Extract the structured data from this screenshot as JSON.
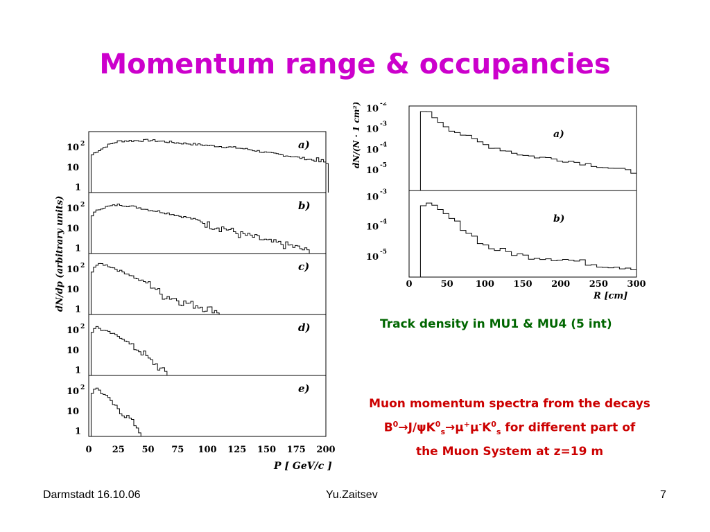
{
  "slide": {
    "title": "Momentum range & occupancies",
    "caption_track": "Track density in MU1 & MU4 (5 int)",
    "caption_muon": {
      "line1": "Muon momentum spectra from the decays",
      "line3": "the Muon System at z=19 m",
      "part_B": "B",
      "sup_0a": "0",
      "arrow1": "→J/ψK",
      "sup_0b": "0",
      "sub_s1": "s",
      "arrow2": "→μ",
      "sup_plus": "+",
      "mu_minus": "μ",
      "sup_minus": "-",
      "K": "K",
      "sup_0c": "0",
      "sub_s2": "s",
      "tail": " for different part of"
    },
    "footer": {
      "left": "Darmstadt 16.10.06",
      "center": "Yu.Zaitsev",
      "right": "7"
    },
    "colors": {
      "title": "#cc00cc",
      "caption_track": "#006600",
      "caption_muon": "#cc0000"
    }
  },
  "left_figure": {
    "ylabel": "dN/dp (arbitrary units)",
    "xlabel": "P [ GeV/c ]",
    "xticks": [
      "0",
      "25",
      "50",
      "75",
      "100",
      "125",
      "150",
      "175",
      "200"
    ],
    "ytick_top": "10",
    "ytick_top_exp": "2",
    "ytick_mid": "10",
    "ytick_low": "1",
    "panels": [
      "a)",
      "b)",
      "c)",
      "d)",
      "e)"
    ]
  },
  "right_figure": {
    "ylabel": "dN/(N · 1 cm²)",
    "xlabel": "R [cm]",
    "xticks": [
      "0",
      "50",
      "100",
      "150",
      "200",
      "250",
      "300"
    ],
    "panel_a": {
      "label": "a)",
      "ticks": [
        "-2",
        "-3",
        "-4",
        "-5"
      ]
    },
    "panel_b": {
      "label": "b)",
      "ticks": [
        "-3",
        "-4",
        "-5"
      ]
    },
    "tick_base": "10"
  },
  "chart_data": [
    {
      "type": "histogram",
      "xlabel": "P [ GeV/c ]",
      "ylabel": "dN/dp (arbitrary units)",
      "xlim": [
        0,
        200
      ],
      "yscale": "log",
      "series": [
        {
          "name": "a)",
          "x": [
            0,
            10,
            25,
            50,
            75,
            100,
            125,
            150,
            175,
            200
          ],
          "y": [
            30,
            80,
            200,
            220,
            160,
            120,
            90,
            50,
            30,
            15
          ]
        },
        {
          "name": "b)",
          "x": [
            0,
            10,
            25,
            50,
            75,
            100,
            125,
            150,
            175,
            200
          ],
          "y": [
            30,
            100,
            150,
            80,
            40,
            15,
            5,
            2,
            1,
            0
          ]
        },
        {
          "name": "c)",
          "x": [
            0,
            5,
            10,
            25,
            40,
            60,
            80,
            100,
            125
          ],
          "y": [
            30,
            150,
            180,
            80,
            30,
            5,
            2,
            1,
            0
          ]
        },
        {
          "name": "d)",
          "x": [
            0,
            5,
            10,
            20,
            35,
            50,
            60,
            75
          ],
          "y": [
            30,
            150,
            100,
            60,
            15,
            3,
            1,
            0
          ]
        },
        {
          "name": "e)",
          "x": [
            0,
            5,
            10,
            20,
            30,
            40,
            50
          ],
          "y": [
            30,
            150,
            80,
            20,
            5,
            1,
            0
          ]
        }
      ]
    },
    {
      "type": "histogram",
      "xlabel": "R [cm]",
      "ylabel": "dN/(N · 1 cm²)",
      "xlim": [
        0,
        300
      ],
      "yscale": "log",
      "series": [
        {
          "name": "a)",
          "x": [
            15,
            25,
            50,
            100,
            150,
            200,
            250,
            300
          ],
          "y": [
            0.008,
            0.005,
            0.001,
            0.00015,
            5e-05,
            3e-05,
            1.5e-05,
            7e-06
          ]
        },
        {
          "name": "b)",
          "x": [
            15,
            25,
            50,
            100,
            150,
            200,
            250,
            300
          ],
          "y": [
            0.0006,
            0.0005,
            0.0002,
            2e-05,
            1e-05,
            8e-06,
            5e-06,
            4e-06
          ]
        }
      ]
    }
  ]
}
